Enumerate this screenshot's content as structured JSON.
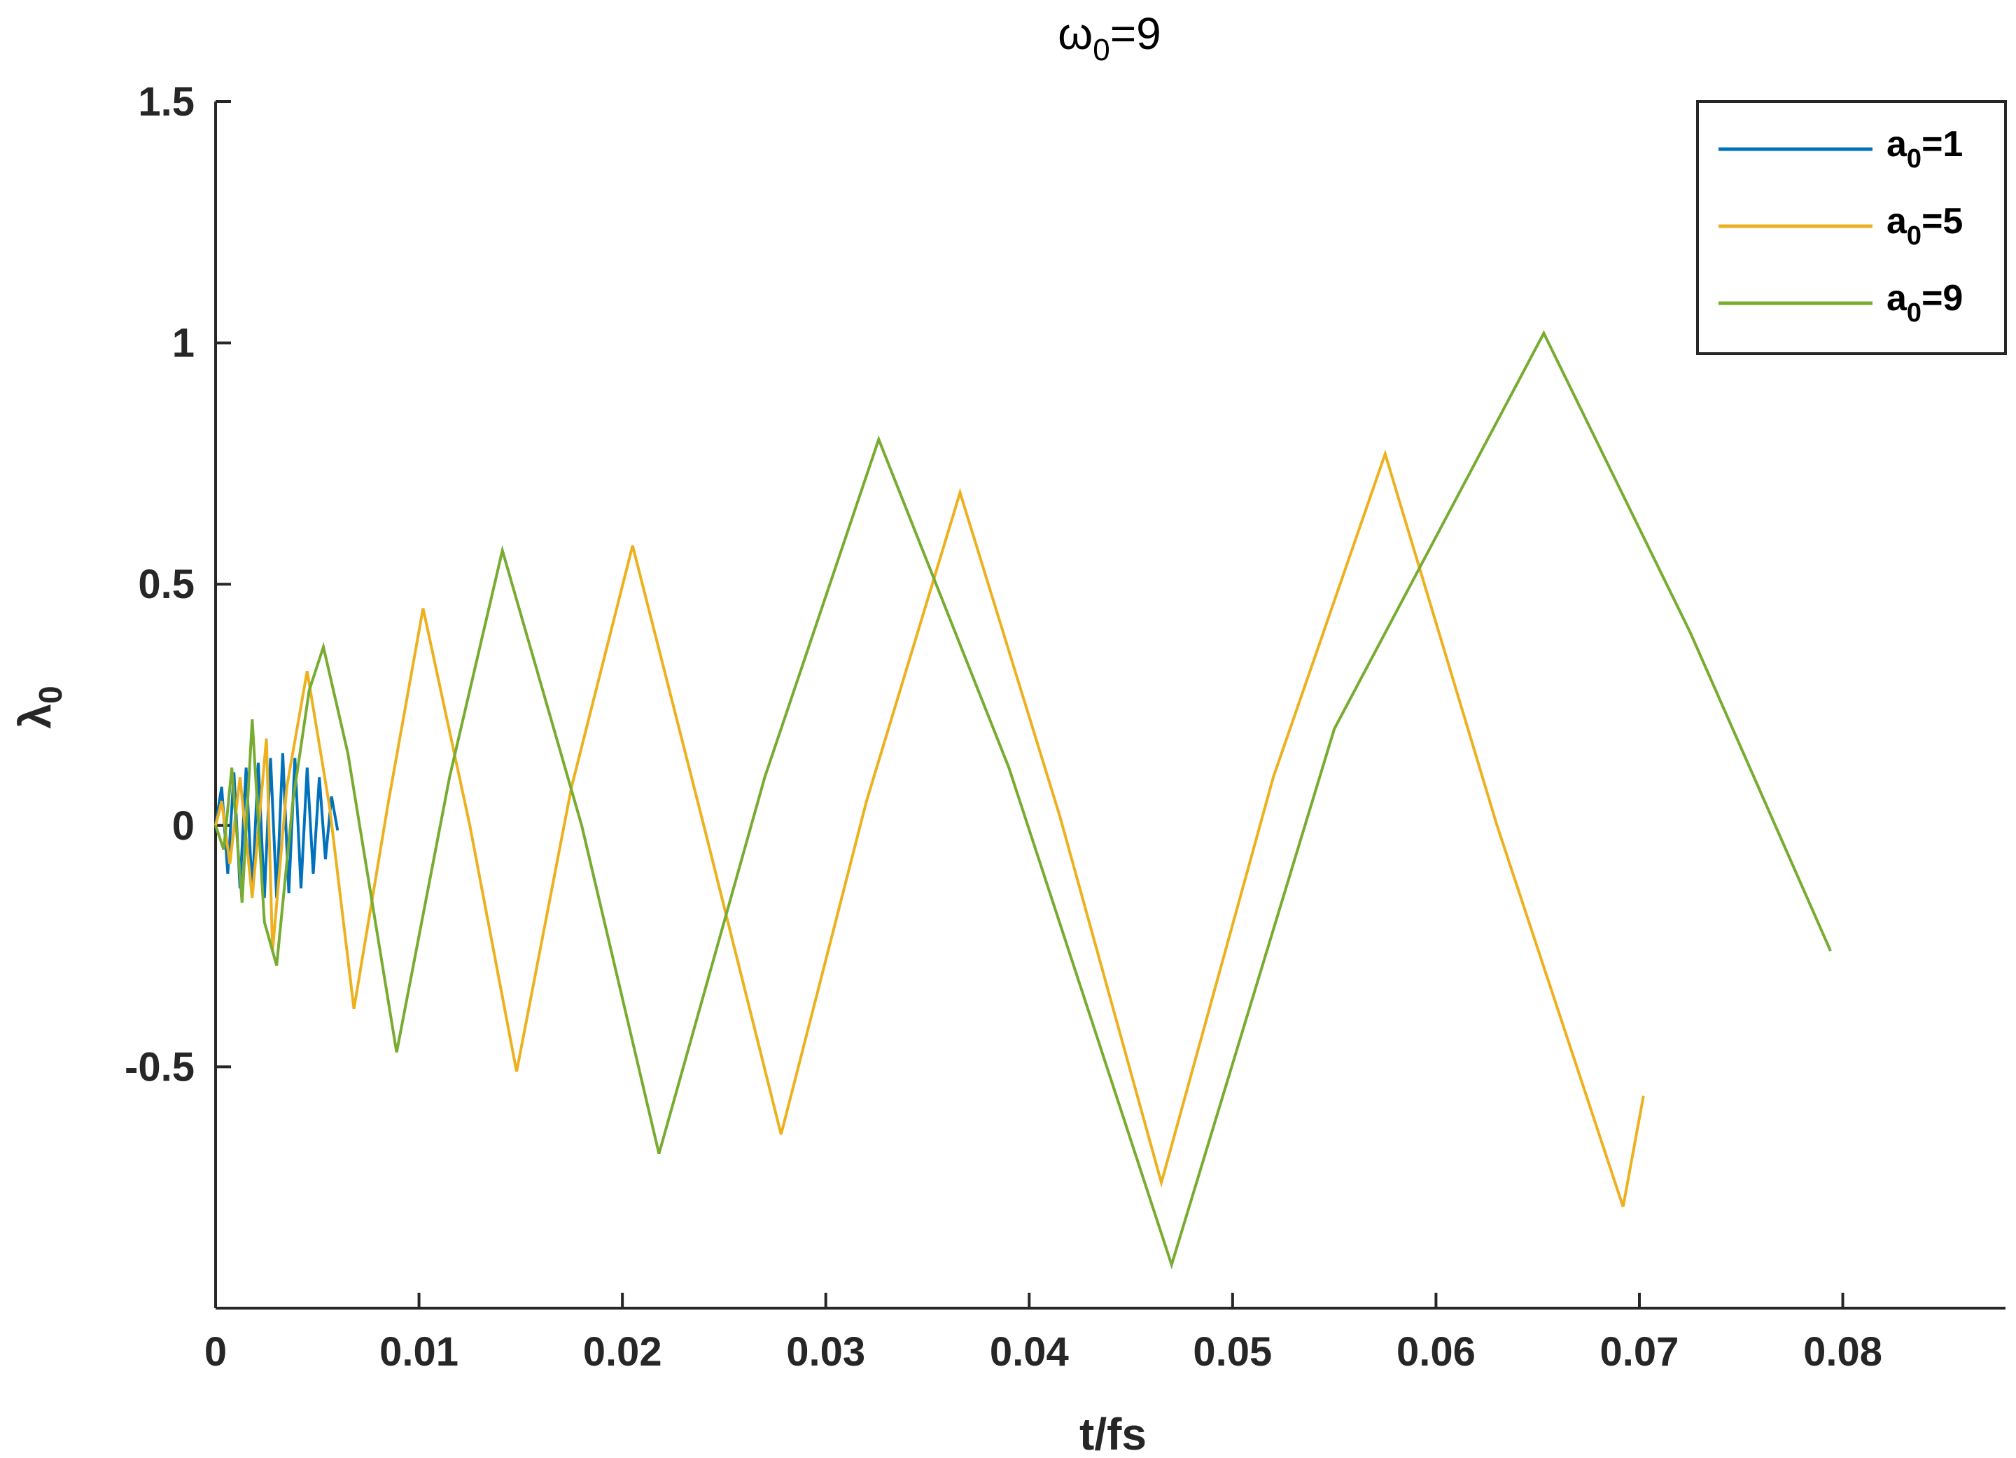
{
  "chart_data": {
    "type": "line",
    "title": {
      "base": "ω",
      "sub": "0",
      "rest": "=9"
    },
    "xlabel": "t/fs",
    "ylabel": {
      "base": "λ",
      "sub": "0"
    },
    "xlim": [
      0,
      0.088
    ],
    "ylim": [
      -1,
      1.5
    ],
    "xticks": [
      0,
      0.01,
      0.02,
      0.03,
      0.04,
      0.05,
      0.06,
      0.07,
      0.08
    ],
    "xtick_labels": [
      "0",
      "0.01",
      "0.02",
      "0.03",
      "0.04",
      "0.05",
      "0.06",
      "0.07",
      "0.08"
    ],
    "yticks": [
      -0.5,
      0,
      0.5,
      1,
      1.5
    ],
    "ytick_labels": [
      "-0.5",
      "0",
      "0.5",
      "1",
      "1.5"
    ],
    "grid": false,
    "legend_position": "top-right",
    "series": [
      {
        "name": {
          "base": "a",
          "sub": "0",
          "rest": "=1"
        },
        "color": "#0072BD",
        "x": [
          0,
          0.0003,
          0.0006,
          0.0009,
          0.0012,
          0.0015,
          0.0018,
          0.0021,
          0.0024,
          0.0027,
          0.003,
          0.0033,
          0.0036,
          0.0039,
          0.0042,
          0.0045,
          0.0048,
          0.0051,
          0.0054,
          0.0057,
          0.006
        ],
        "y": [
          0,
          0.08,
          -0.1,
          0.11,
          -0.13,
          0.12,
          -0.14,
          0.13,
          -0.15,
          0.14,
          -0.15,
          0.15,
          -0.14,
          0.14,
          -0.13,
          0.12,
          -0.1,
          0.1,
          -0.07,
          0.06,
          -0.01
        ]
      },
      {
        "name": {
          "base": "a",
          "sub": "0",
          "rest": "=5"
        },
        "color": "#EDB120",
        "x": [
          0,
          0.0003,
          0.0007,
          0.0012,
          0.0018,
          0.0025,
          0.0028,
          0.0035,
          0.0045,
          0.0056,
          0.0068,
          0.0085,
          0.0102,
          0.0125,
          0.0148,
          0.0175,
          0.0205,
          0.024,
          0.0278,
          0.032,
          0.0366,
          0.0415,
          0.0465,
          0.052,
          0.0575,
          0.063,
          0.0692,
          0.0702
        ],
        "y": [
          0,
          0.05,
          -0.08,
          0.1,
          -0.15,
          0.18,
          -0.26,
          0.08,
          0.32,
          0.04,
          -0.38,
          0.05,
          0.45,
          0.0,
          -0.51,
          0.08,
          0.58,
          0.0,
          -0.64,
          0.05,
          0.69,
          0.02,
          -0.74,
          0.1,
          0.77,
          0.0,
          -0.79,
          -0.56
        ]
      },
      {
        "name": {
          "base": "a",
          "sub": "0",
          "rest": "=9"
        },
        "color": "#77AC30",
        "x": [
          0,
          0.0004,
          0.0008,
          0.0013,
          0.0018,
          0.0024,
          0.003,
          0.0038,
          0.0046,
          0.0053,
          0.0065,
          0.0089,
          0.0115,
          0.0141,
          0.018,
          0.0218,
          0.027,
          0.0326,
          0.039,
          0.047,
          0.055,
          0.0653,
          0.0725,
          0.0794
        ],
        "y": [
          0,
          -0.05,
          0.12,
          -0.16,
          0.22,
          -0.2,
          -0.29,
          0.05,
          0.28,
          0.37,
          0.15,
          -0.47,
          0.1,
          0.57,
          0.0,
          -0.68,
          0.1,
          0.8,
          0.12,
          -0.91,
          0.2,
          1.02,
          0.4,
          -0.26
        ]
      }
    ]
  }
}
